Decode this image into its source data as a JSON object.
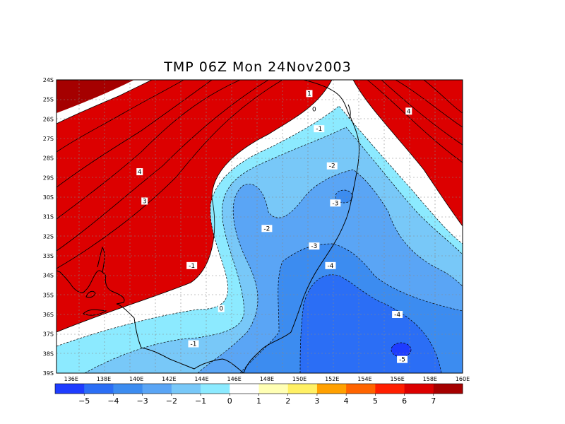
{
  "title": "TMP 06Z Mon 24Nov2003",
  "map": {
    "lon_ticks": [
      "136E",
      "138E",
      "140E",
      "142E",
      "144E",
      "146E",
      "148E",
      "150E",
      "152E",
      "154E",
      "156E",
      "158E",
      "160E"
    ],
    "lat_ticks": [
      "24S",
      "25S",
      "26S",
      "27S",
      "28S",
      "29S",
      "30S",
      "31S",
      "32S",
      "33S",
      "34S",
      "35S",
      "36S",
      "37S",
      "38S",
      "39S"
    ],
    "contour_labels": [
      {
        "text": "4",
        "lon": 140.2,
        "lat": -28.7
      },
      {
        "text": "3",
        "lon": 140.5,
        "lat": -30.2
      },
      {
        "text": "-1",
        "lon": 143.4,
        "lat": -33.5
      },
      {
        "text": "0",
        "lon": 145.2,
        "lat": -35.7
      },
      {
        "text": "-1",
        "lon": 143.5,
        "lat": -37.5
      },
      {
        "text": "-2",
        "lon": 148.0,
        "lat": -31.6
      },
      {
        "text": "-3",
        "lon": 150.9,
        "lat": -32.5
      },
      {
        "text": "-4",
        "lon": 151.9,
        "lat": -33.5
      },
      {
        "text": "-4",
        "lon": 156.0,
        "lat": -36.0
      },
      {
        "text": "-5",
        "lon": 156.3,
        "lat": -38.3
      },
      {
        "text": "-3",
        "lon": 152.2,
        "lat": -30.3
      },
      {
        "text": "-2",
        "lon": 152.0,
        "lat": -28.4
      },
      {
        "text": "-1",
        "lon": 151.2,
        "lat": -26.5
      },
      {
        "text": "0",
        "lon": 150.9,
        "lat": -25.5
      },
      {
        "text": "1",
        "lon": 150.6,
        "lat": -24.7
      },
      {
        "text": "4",
        "lon": 156.7,
        "lat": -25.6
      }
    ]
  },
  "colorbar": {
    "labels": [
      "-5",
      "-4",
      "-3",
      "-2",
      "-1",
      "0",
      "1",
      "2",
      "3",
      "4",
      "5",
      "6",
      "7"
    ],
    "colors": [
      "#1e3cff",
      "#2b6ef5",
      "#3c8cf0",
      "#5aa5f5",
      "#78c8f8",
      "#8ceaff",
      "#ffffff",
      "#ffffb4",
      "#fff064",
      "#ffa000",
      "#ff6400",
      "#ff1e00",
      "#dc0000",
      "#a50000"
    ]
  }
}
